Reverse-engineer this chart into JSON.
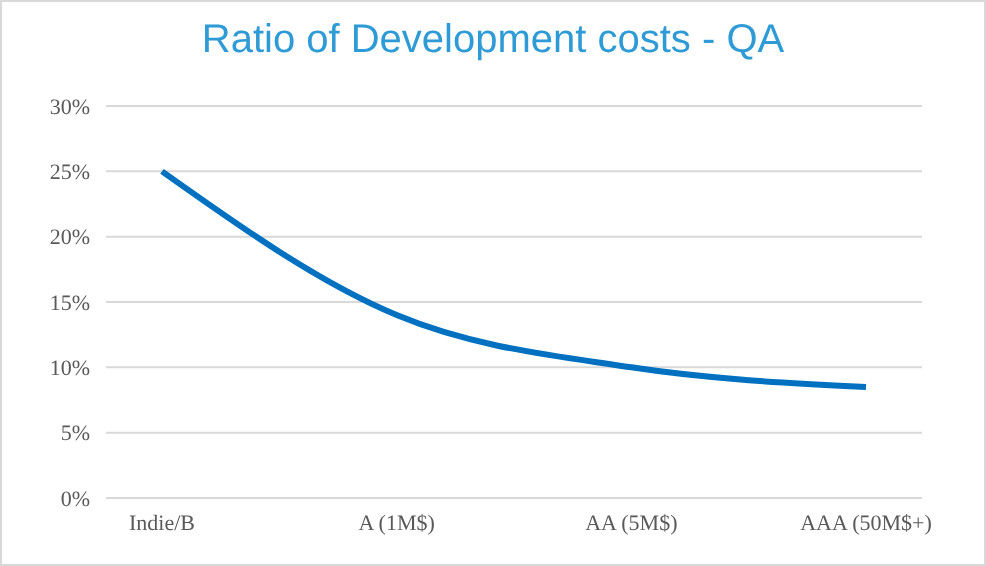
{
  "chart_data": {
    "type": "line",
    "title": "Ratio of Development costs - QA",
    "categories": [
      "Indie/B",
      "A (1M$)",
      "AA (5M$)",
      "AAA (50M$+)"
    ],
    "series": [
      {
        "color": "#0070c0",
        "values": [
          25,
          14,
          10,
          8.5
        ]
      }
    ],
    "ylim": [
      0,
      30
    ],
    "yticks": [
      {
        "value": 0,
        "label": "0%"
      },
      {
        "value": 5,
        "label": "5%"
      },
      {
        "value": 10,
        "label": "10%"
      },
      {
        "value": 15,
        "label": "15%"
      },
      {
        "value": 20,
        "label": "20%"
      },
      {
        "value": 25,
        "label": "25%"
      },
      {
        "value": 30,
        "label": "30%"
      }
    ],
    "grid": "y",
    "legend": false,
    "marker": "none",
    "line_style": "solid"
  }
}
